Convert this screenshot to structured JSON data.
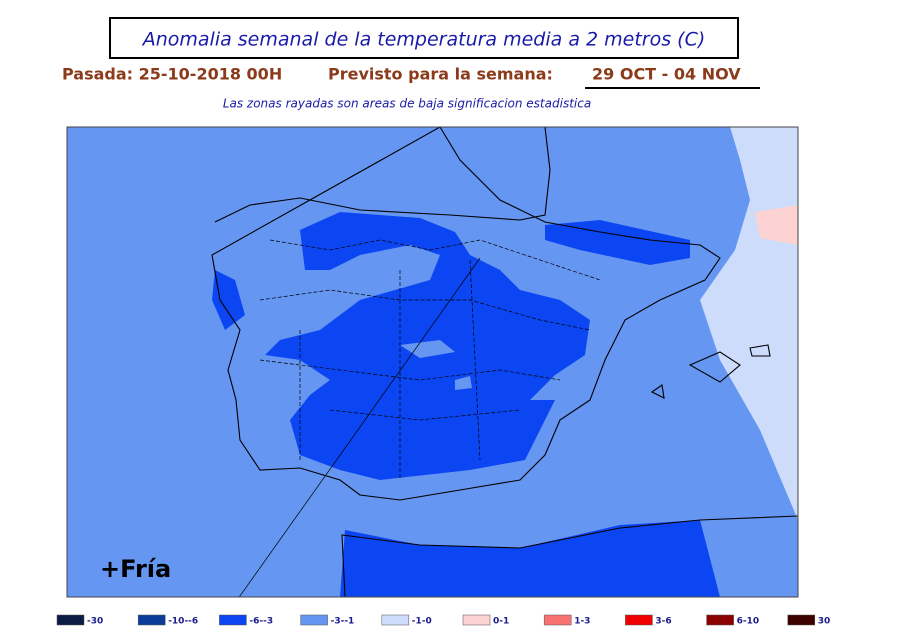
{
  "header": {
    "title": "Anomalia semanal de la temperatura media a 2 metros (C)",
    "run": "Pasada: 25-10-2018 00H",
    "forecast_label": "Previsto para la semana:",
    "forecast_week": "29 OCT - 04 NOV",
    "note": "Las zonas rayadas son areas de baja significacion estadistica"
  },
  "map": {
    "annotation": "+Fría"
  },
  "legend": [
    {
      "label": "-30",
      "color": "#0b1c44"
    },
    {
      "label": "-10--6",
      "color": "#0b3c9c"
    },
    {
      "label": "-6--3",
      "color": "#0c46f2"
    },
    {
      "label": "-3--1",
      "color": "#6596f2"
    },
    {
      "label": "-1-0",
      "color": "#cddcfa"
    },
    {
      "label": "0-1",
      "color": "#fdd2d2"
    },
    {
      "label": "1-3",
      "color": "#f87272"
    },
    {
      "label": "3-6",
      "color": "#f00000"
    },
    {
      "label": "6-10",
      "color": "#8c0000"
    },
    {
      "label": "30",
      "color": "#3c0000"
    }
  ]
}
